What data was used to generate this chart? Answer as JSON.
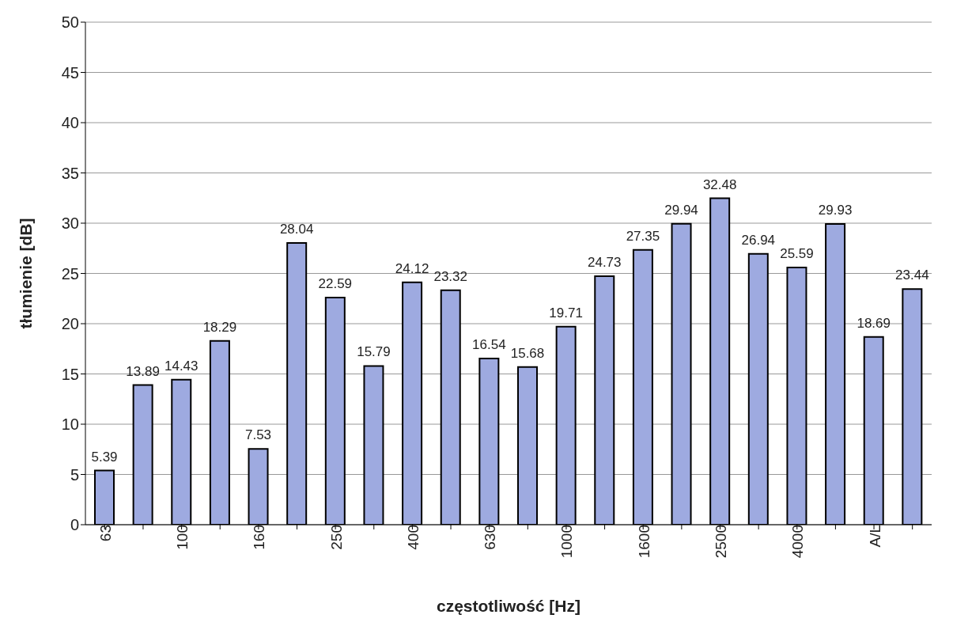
{
  "chart_data": {
    "type": "bar",
    "xlabel": "częstotliwość [Hz]",
    "ylabel": "tłumienie [dB]",
    "categories": [
      "63",
      null,
      "100",
      null,
      "160",
      null,
      "250",
      null,
      "400",
      null,
      "630",
      null,
      "1000",
      null,
      "1600",
      null,
      "2500",
      null,
      "4000",
      null,
      "A/L",
      null
    ],
    "values": [
      5.39,
      13.89,
      14.43,
      18.29,
      7.53,
      28.04,
      22.59,
      15.79,
      24.12,
      23.32,
      16.54,
      15.68,
      19.71,
      24.73,
      27.35,
      29.94,
      32.48,
      26.94,
      25.59,
      29.93,
      18.69,
      23.44
    ],
    "color": "#9eaae0",
    "ylim": [
      0,
      50
    ],
    "yticks": [
      0,
      5,
      10,
      15,
      20,
      25,
      30,
      35,
      40,
      45,
      50
    ],
    "grid": "y",
    "data_labels": true
  }
}
